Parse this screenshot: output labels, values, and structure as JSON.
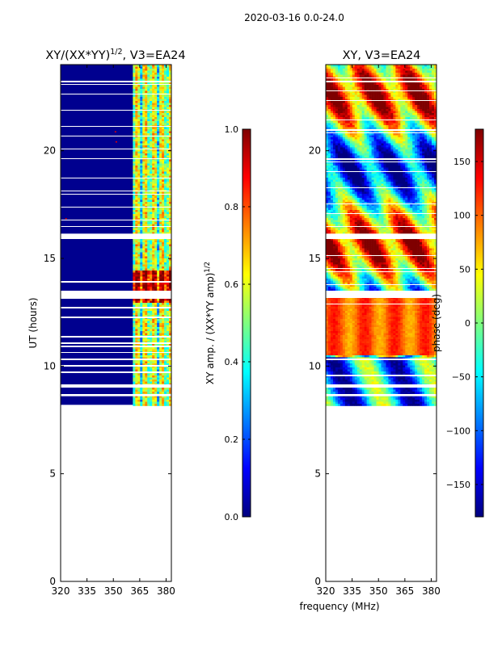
{
  "suptitle": "2020-03-16 0.0-24.0",
  "shared_xlabel": "frequency (MHz)",
  "colors": {
    "masked": "#ffffff",
    "background_fill": "#00008f",
    "colormap": "jet"
  },
  "chart_data": [
    {
      "type": "heatmap",
      "title": "XY/(XX*YY)",
      "title_superscript": "1/2",
      "title_suffix": ", V3=EA24",
      "ylabel": "UT (hours)",
      "xlim": [
        320,
        383
      ],
      "ylim": [
        0,
        24
      ],
      "xticks": [
        320,
        335,
        350,
        365,
        380
      ],
      "yticks": [
        0,
        5,
        10,
        15,
        20
      ],
      "data_start_hour": 8.2,
      "bright_band_mhz": [
        360,
        383
      ],
      "colorbar": {
        "label": "XY amp. / (XX*YY amp)",
        "label_superscript": "1/2",
        "range": [
          0.0,
          1.0
        ],
        "ticks": [
          "0.0",
          "0.2",
          "0.4",
          "0.6",
          "0.8",
          "1.0"
        ],
        "tick_values": [
          0.0,
          0.2,
          0.4,
          0.6,
          0.8,
          1.0
        ]
      }
    },
    {
      "type": "heatmap",
      "title": "XY, V3=EA24",
      "xlim": [
        320,
        383
      ],
      "ylim": [
        0,
        24
      ],
      "xticks": [
        320,
        335,
        350,
        365,
        380
      ],
      "yticks": [
        0,
        5,
        10,
        15,
        20
      ],
      "data_start_hour": 8.2,
      "colorbar": {
        "label": "phase (deg)",
        "range": [
          -180,
          180
        ],
        "ticks": [
          "−150",
          "−100",
          "−50",
          "0",
          "50",
          "100",
          "150"
        ],
        "tick_values": [
          -150,
          -100,
          -50,
          0,
          50,
          100,
          150
        ]
      }
    }
  ]
}
